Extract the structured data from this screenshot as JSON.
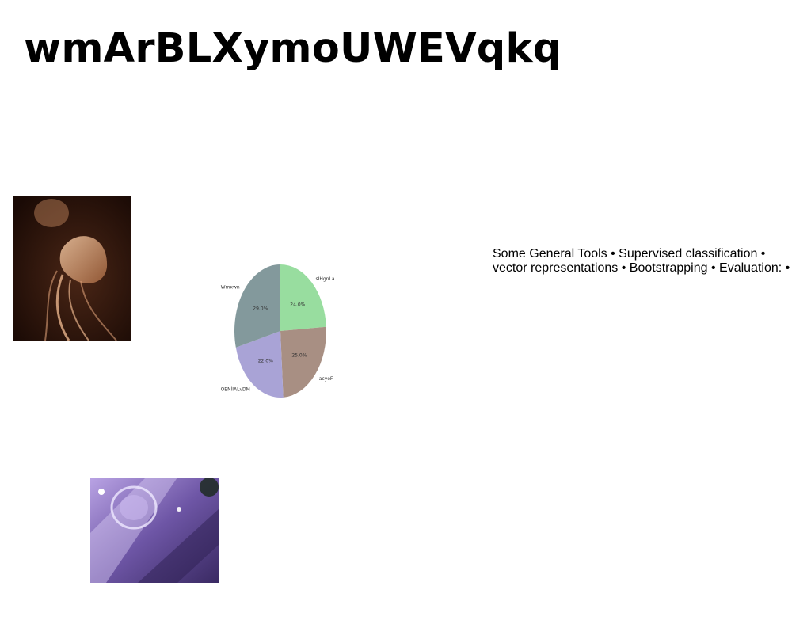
{
  "title": "wmArBLXymoUWEVqkq",
  "images": [
    {
      "id": "jellyfish",
      "icon": "jellyfish-photo"
    },
    {
      "id": "glass",
      "icon": "crystal-glass-photo"
    }
  ],
  "body_text": {
    "line1": "Some General Tools • Supervised classification •",
    "line2": "vector representations • Bootstrapping • Evaluation: •"
  },
  "chart_data": {
    "type": "pie",
    "title": "",
    "slices": [
      {
        "label": "sIHgnLa",
        "value": 24.0,
        "pct_label": "24.0%",
        "color": "#98dd9f"
      },
      {
        "label": "acyeF",
        "value": 25.0,
        "pct_label": "25.0%",
        "color": "#a88f83"
      },
      {
        "label": "OENlIALvDM",
        "value": 22.0,
        "pct_label": "22.0%",
        "color": "#a9a3d6"
      },
      {
        "label": "Wmxwn",
        "value": 29.0,
        "pct_label": "29.0%",
        "color": "#83999c"
      }
    ],
    "start_angle": "top",
    "direction": "clockwise"
  }
}
